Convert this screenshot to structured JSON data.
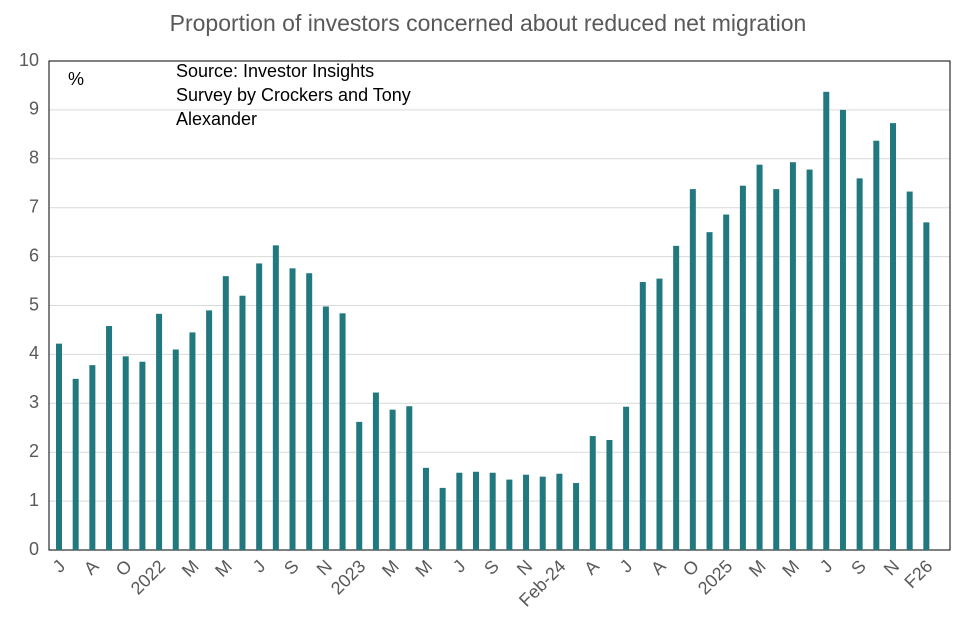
{
  "chart_data": {
    "type": "bar",
    "title": "Proportion of investors concerned about reduced net migration",
    "y_unit_label": "%",
    "annotation": [
      "Source: Investor Insights",
      "Survey by Crockers and Tony",
      "Alexander"
    ],
    "categories": [
      "J",
      null,
      "A",
      null,
      "O",
      null,
      "2022",
      null,
      "M",
      null,
      "M",
      null,
      "J",
      null,
      "S",
      null,
      "N",
      null,
      "2023",
      null,
      "M",
      null,
      "M",
      null,
      "J",
      null,
      "S",
      null,
      "N",
      null,
      "Feb-24",
      null,
      "A",
      null,
      "J",
      null,
      "A",
      null,
      "O",
      null,
      "2025",
      null,
      "M",
      null,
      "M",
      null,
      "J",
      null,
      "S",
      null,
      "N",
      null,
      "F26"
    ],
    "values": [
      4.22,
      3.5,
      3.78,
      4.58,
      3.96,
      3.85,
      4.83,
      4.1,
      4.45,
      4.9,
      5.6,
      5.2,
      5.86,
      6.23,
      5.76,
      5.66,
      4.98,
      4.84,
      2.62,
      3.22,
      2.87,
      2.94,
      1.68,
      1.27,
      1.58,
      1.6,
      1.58,
      1.44,
      1.54,
      1.5,
      1.56,
      1.37,
      2.33,
      2.25,
      2.93,
      5.48,
      5.55,
      6.22,
      7.38,
      6.5,
      6.86,
      7.45,
      7.88,
      7.38,
      7.93,
      7.78,
      9.37,
      9.0,
      7.6,
      8.37,
      8.73,
      7.33,
      6.7
    ],
    "color": "#21797f",
    "ylim": [
      0,
      10
    ],
    "yticks": [
      0,
      1,
      2,
      3,
      4,
      5,
      6,
      7,
      8,
      9,
      10
    ],
    "grid": true
  }
}
